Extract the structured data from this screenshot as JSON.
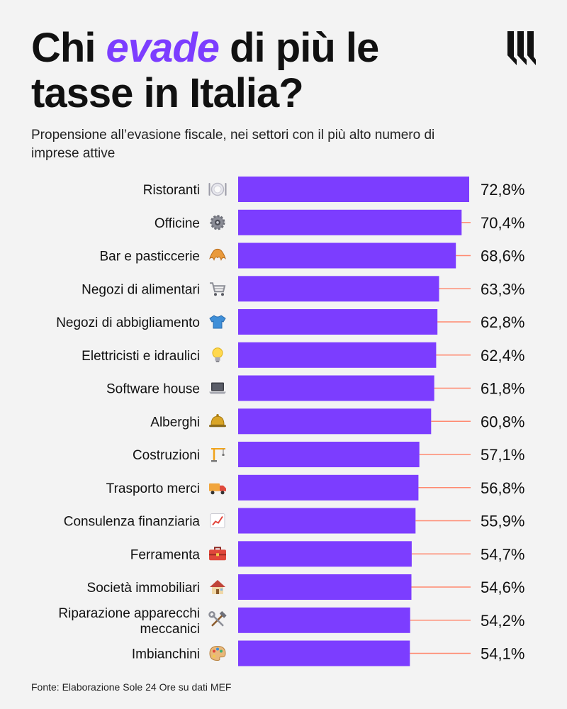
{
  "header": {
    "title_part1": "Chi ",
    "title_accent": "evade",
    "title_part2": " di più le tasse in Italia?",
    "subtitle": "Propensione all’evasione fiscale, nei settori con il più alto numero di imprese attive"
  },
  "footer": {
    "source": "Fonte: Elaborazione Sole 24 Ore su dati MEF"
  },
  "colors": {
    "bar": "#7c3dff",
    "accent": "#7c3dff",
    "leader_line": "#ff8a70",
    "text": "#111111",
    "background": "#f3f3f3"
  },
  "chart_data": {
    "type": "bar",
    "orientation": "horizontal",
    "categories": [
      "Ristoranti",
      "Officine",
      "Bar e pasticcerie",
      "Negozi di alimentari",
      "Negozi di abbigliamento",
      "Elettricisti e idraulici",
      "Software house",
      "Alberghi",
      "Costruzioni",
      "Trasporto merci",
      "Consulenza finanziaria",
      "Ferramenta",
      "Società immobiliari",
      "Riparazione apparecchi meccanici",
      "Imbianchini"
    ],
    "category_lines": [
      [
        "Ristoranti"
      ],
      [
        "Officine"
      ],
      [
        "Bar e pasticcerie"
      ],
      [
        "Negozi di alimentari"
      ],
      [
        "Negozi di abbigliamento"
      ],
      [
        "Elettricisti e idraulici"
      ],
      [
        "Software house"
      ],
      [
        "Alberghi"
      ],
      [
        "Costruzioni"
      ],
      [
        "Trasporto merci"
      ],
      [
        "Consulenza finanziaria"
      ],
      [
        "Ferramenta"
      ],
      [
        "Società immobiliari"
      ],
      [
        "Riparazione apparecchi",
        "meccanici"
      ],
      [
        "Imbianchini"
      ]
    ],
    "icons": [
      "plate-cutlery-icon",
      "gear-icon",
      "croissant-icon",
      "shopping-cart-icon",
      "tshirt-icon",
      "light-bulb-icon",
      "laptop-icon",
      "service-bell-icon",
      "crane-icon",
      "delivery-truck-icon",
      "chart-increasing-icon",
      "toolbox-icon",
      "house-icon",
      "hammer-wrench-icon",
      "palette-icon"
    ],
    "values": [
      72.8,
      70.4,
      68.6,
      63.3,
      62.8,
      62.4,
      61.8,
      60.8,
      57.1,
      56.8,
      55.9,
      54.7,
      54.6,
      54.2,
      54.1
    ],
    "value_labels": [
      "72,8%",
      "70,4%",
      "68,6%",
      "63,3%",
      "62,8%",
      "62,4%",
      "61,8%",
      "60,8%",
      "57,1%",
      "56,8%",
      "55,9%",
      "54,7%",
      "54,6%",
      "54,2%",
      "54,1%"
    ],
    "unit": "%",
    "xlim": [
      0,
      72.8
    ],
    "grid": false,
    "legend": "none"
  }
}
